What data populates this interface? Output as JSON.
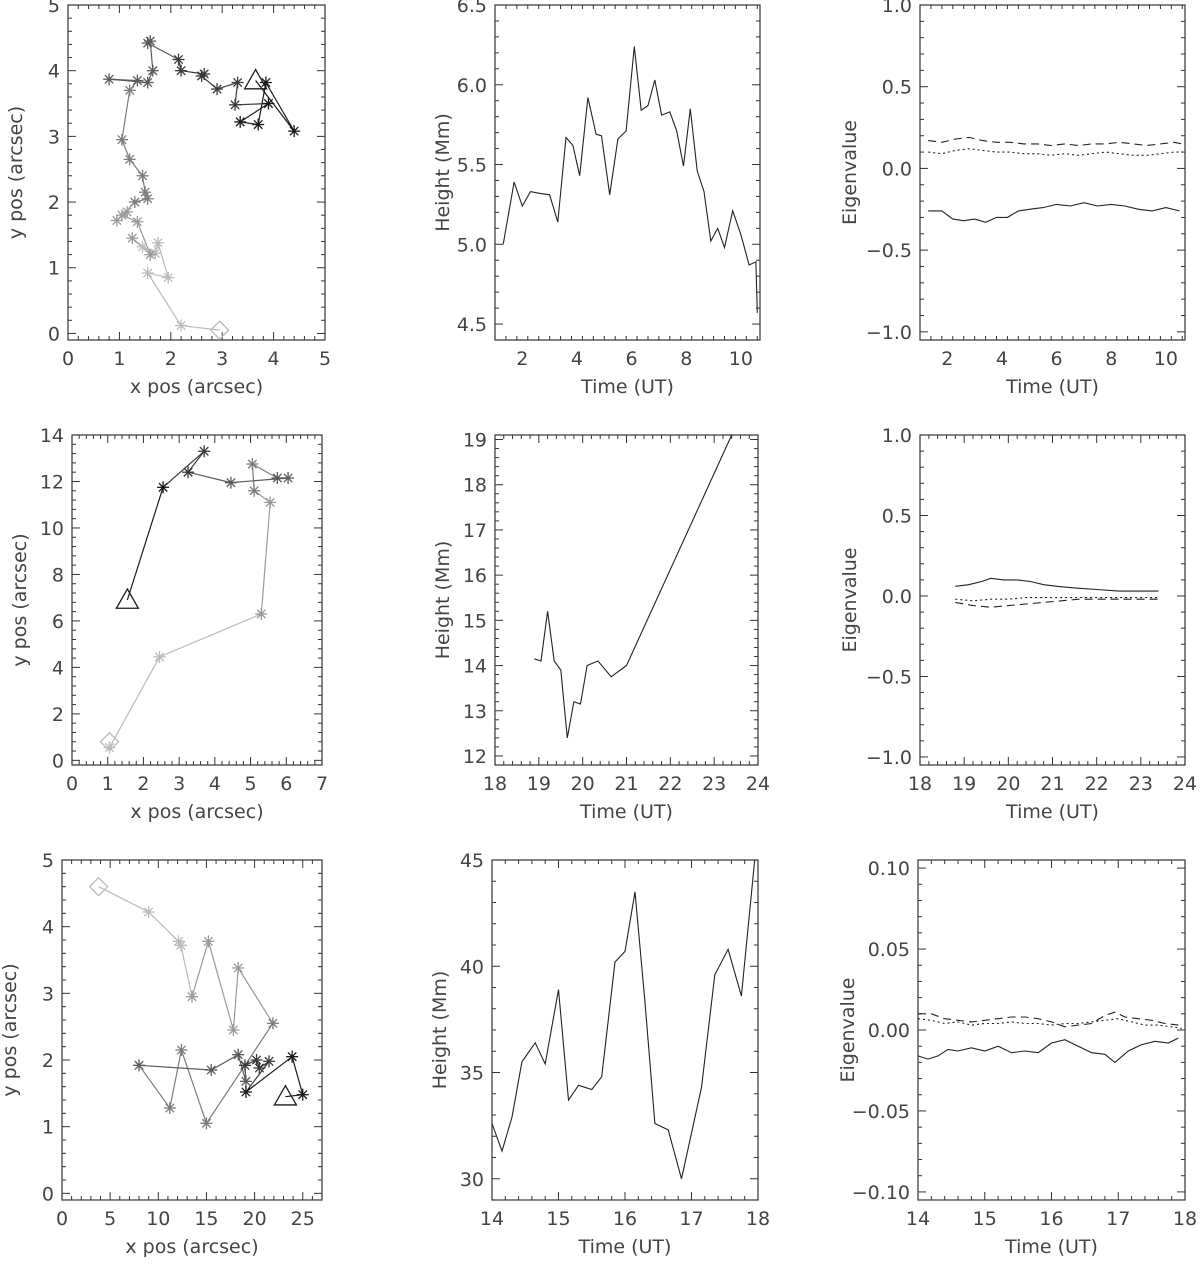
{
  "figure": {
    "description_free": true
  },
  "chart_data": [
    {
      "id": "r1-pos",
      "type": "scatter",
      "xlabel": "x pos (arcsec)",
      "ylabel": "y pos (arcsec)",
      "xlim": [
        0,
        5
      ],
      "ylim": [
        -0.1,
        5
      ],
      "xticks": [
        0,
        1,
        2,
        3,
        4,
        5
      ],
      "yticks": [
        0,
        1,
        2,
        3,
        4,
        5
      ],
      "start_marker": "diamond",
      "end_marker": "triangle",
      "start": [
        2.95,
        0.05
      ],
      "end": [
        3.65,
        3.85
      ],
      "points": [
        [
          2.95,
          0.05
        ],
        [
          2.2,
          0.12
        ],
        [
          1.55,
          0.92
        ],
        [
          1.95,
          0.85
        ],
        [
          1.75,
          1.38
        ],
        [
          1.7,
          1.22
        ],
        [
          1.45,
          1.32
        ],
        [
          1.25,
          1.45
        ],
        [
          1.6,
          1.2
        ],
        [
          1.35,
          1.7
        ],
        [
          1.05,
          1.8
        ],
        [
          1.15,
          1.85
        ],
        [
          0.95,
          1.72
        ],
        [
          1.3,
          2.0
        ],
        [
          1.55,
          2.05
        ],
        [
          1.5,
          2.15
        ],
        [
          1.45,
          2.4
        ],
        [
          1.2,
          2.65
        ],
        [
          1.05,
          2.95
        ],
        [
          1.2,
          3.7
        ],
        [
          1.35,
          3.85
        ],
        [
          0.8,
          3.87
        ],
        [
          1.55,
          3.82
        ],
        [
          1.65,
          4.0
        ],
        [
          1.6,
          4.45
        ],
        [
          1.55,
          4.42
        ],
        [
          2.15,
          4.17
        ],
        [
          2.2,
          4.0
        ],
        [
          2.65,
          3.95
        ],
        [
          2.6,
          3.92
        ],
        [
          2.9,
          3.72
        ],
        [
          3.3,
          3.82
        ],
        [
          3.25,
          3.48
        ],
        [
          3.9,
          3.5
        ],
        [
          3.35,
          3.22
        ],
        [
          3.7,
          3.18
        ],
        [
          3.85,
          3.82
        ],
        [
          4.4,
          3.08
        ],
        [
          3.65,
          3.85
        ]
      ]
    },
    {
      "id": "r1-height",
      "type": "line",
      "xlabel": "Time (UT)",
      "ylabel": "Height (Mm)",
      "xlim": [
        1,
        10.7
      ],
      "ylim": [
        4.4,
        6.5
      ],
      "xticks": [
        2,
        4,
        6,
        8,
        10
      ],
      "yticks": [
        4.5,
        5.0,
        5.5,
        6.0,
        6.5
      ],
      "ytick_labels": [
        "4.5",
        "5.0",
        "5.5",
        "6.0",
        "6.5"
      ],
      "x": [
        1.3,
        1.7,
        2.0,
        2.3,
        2.6,
        3.0,
        3.3,
        3.6,
        3.85,
        4.1,
        4.4,
        4.7,
        4.9,
        5.2,
        5.5,
        5.8,
        6.1,
        6.35,
        6.6,
        6.85,
        7.1,
        7.4,
        7.65,
        7.9,
        8.15,
        8.4,
        8.65,
        8.9,
        9.15,
        9.4,
        9.7,
        10.0,
        10.3,
        10.55,
        10.6
      ],
      "y": [
        5.0,
        5.39,
        5.24,
        5.33,
        5.32,
        5.31,
        5.14,
        5.67,
        5.62,
        5.43,
        5.92,
        5.69,
        5.68,
        5.31,
        5.66,
        5.71,
        6.24,
        5.84,
        5.87,
        6.03,
        5.81,
        5.83,
        5.71,
        5.49,
        5.85,
        5.46,
        5.33,
        5.02,
        5.1,
        4.98,
        5.21,
        5.06,
        4.87,
        4.89,
        4.57
      ]
    },
    {
      "id": "r1-eigen",
      "type": "line",
      "xlabel": "Time (UT)",
      "ylabel": "Eigenvalue",
      "xlim": [
        1,
        10.7
      ],
      "ylim": [
        -1.05,
        1.0
      ],
      "xticks": [
        2,
        4,
        6,
        8,
        10
      ],
      "yticks": [
        -1.0,
        -0.5,
        0.0,
        0.5,
        1.0
      ],
      "ytick_labels": [
        "−1.0",
        "−0.5",
        "0.0",
        "0.5",
        "1.0"
      ],
      "series": [
        {
          "name": "solid",
          "dash": "none",
          "x": [
            1.3,
            1.8,
            2.2,
            2.6,
            3.0,
            3.4,
            3.8,
            4.2,
            4.6,
            5.0,
            5.5,
            6.0,
            6.5,
            7.0,
            7.5,
            8.0,
            8.5,
            9.0,
            9.5,
            10.0,
            10.5
          ],
          "y": [
            -0.26,
            -0.26,
            -0.31,
            -0.32,
            -0.31,
            -0.33,
            -0.3,
            -0.3,
            -0.26,
            -0.25,
            -0.24,
            -0.22,
            -0.23,
            -0.21,
            -0.23,
            -0.22,
            -0.23,
            -0.25,
            -0.26,
            -0.24,
            -0.26
          ]
        },
        {
          "name": "dashed",
          "dash": "8,5",
          "x": [
            1.3,
            1.8,
            2.3,
            2.8,
            3.3,
            3.8,
            4.3,
            4.8,
            5.3,
            5.8,
            6.3,
            6.8,
            7.3,
            7.8,
            8.3,
            8.8,
            9.3,
            9.8,
            10.3,
            10.6
          ],
          "y": [
            0.17,
            0.16,
            0.18,
            0.19,
            0.17,
            0.16,
            0.16,
            0.15,
            0.15,
            0.14,
            0.15,
            0.14,
            0.15,
            0.15,
            0.16,
            0.15,
            0.14,
            0.15,
            0.16,
            0.15
          ]
        },
        {
          "name": "dotted",
          "dash": "2,3",
          "x": [
            1.3,
            1.8,
            2.3,
            2.8,
            3.3,
            3.8,
            4.3,
            4.8,
            5.3,
            5.8,
            6.3,
            6.8,
            7.3,
            7.8,
            8.3,
            8.8,
            9.3,
            9.8,
            10.3,
            10.6
          ],
          "y": [
            0.1,
            0.09,
            0.11,
            0.12,
            0.11,
            0.1,
            0.1,
            0.09,
            0.09,
            0.08,
            0.09,
            0.08,
            0.09,
            0.1,
            0.09,
            0.08,
            0.08,
            0.09,
            0.1,
            0.1
          ]
        }
      ]
    },
    {
      "id": "r2-pos",
      "type": "scatter",
      "xlabel": "x pos (arcsec)",
      "ylabel": "y pos (arcsec)",
      "xlim": [
        0,
        7
      ],
      "ylim": [
        -0.2,
        14
      ],
      "xticks": [
        0,
        1,
        2,
        3,
        4,
        5,
        6,
        7
      ],
      "yticks": [
        0,
        2,
        4,
        6,
        8,
        10,
        12,
        14
      ],
      "start_marker": "diamond",
      "end_marker": "triangle",
      "start": [
        1.05,
        0.8
      ],
      "end": [
        1.55,
        6.9
      ],
      "points": [
        [
          1.05,
          0.8
        ],
        [
          1.05,
          0.55
        ],
        [
          2.45,
          4.45
        ],
        [
          5.3,
          6.3
        ],
        [
          5.55,
          11.1
        ],
        [
          5.1,
          11.6
        ],
        [
          5.05,
          12.75
        ],
        [
          5.75,
          12.15
        ],
        [
          6.05,
          12.15
        ],
        [
          4.45,
          11.95
        ],
        [
          3.25,
          12.4
        ],
        [
          3.7,
          13.3
        ],
        [
          2.55,
          11.75
        ],
        [
          1.55,
          6.9
        ]
      ]
    },
    {
      "id": "r2-height",
      "type": "line",
      "xlabel": "Time (UT)",
      "ylabel": "Height (Mm)",
      "xlim": [
        18,
        24
      ],
      "ylim": [
        11.8,
        19.1
      ],
      "xticks": [
        18,
        19,
        20,
        21,
        22,
        23,
        24
      ],
      "yticks": [
        12,
        13,
        14,
        15,
        16,
        17,
        18,
        19
      ],
      "ytick_labels": [
        "12",
        "13",
        "14",
        "15",
        "16",
        "17",
        "18",
        "19"
      ],
      "x": [
        18.9,
        19.05,
        19.2,
        19.35,
        19.5,
        19.65,
        19.8,
        19.95,
        20.1,
        20.35,
        20.65,
        21.0,
        23.4
      ],
      "y": [
        14.15,
        14.1,
        15.2,
        14.1,
        13.9,
        12.4,
        13.2,
        13.15,
        14.0,
        14.1,
        13.75,
        14.0,
        19.1
      ]
    },
    {
      "id": "r2-eigen",
      "type": "line",
      "xlabel": "Time (UT)",
      "ylabel": "Eigenvalue",
      "xlim": [
        18,
        24
      ],
      "ylim": [
        -1.05,
        1.0
      ],
      "xticks": [
        18,
        19,
        20,
        21,
        22,
        23,
        24
      ],
      "yticks": [
        -1.0,
        -0.5,
        0.0,
        0.5,
        1.0
      ],
      "ytick_labels": [
        "−1.0",
        "−0.5",
        "0.0",
        "0.5",
        "1.0"
      ],
      "series": [
        {
          "name": "solid",
          "dash": "none",
          "x": [
            18.8,
            19.1,
            19.4,
            19.6,
            19.9,
            20.2,
            20.5,
            20.8,
            21.1,
            21.5,
            22.0,
            22.5,
            23.0,
            23.4
          ],
          "y": [
            0.06,
            0.07,
            0.09,
            0.11,
            0.1,
            0.1,
            0.09,
            0.07,
            0.06,
            0.05,
            0.04,
            0.03,
            0.03,
            0.03
          ]
        },
        {
          "name": "dashed",
          "dash": "8,5",
          "x": [
            18.8,
            19.2,
            19.6,
            20.0,
            20.4,
            20.8,
            21.2,
            21.6,
            22.0,
            22.5,
            23.0,
            23.4
          ],
          "y": [
            -0.04,
            -0.06,
            -0.07,
            -0.06,
            -0.05,
            -0.04,
            -0.03,
            -0.02,
            -0.02,
            -0.02,
            -0.02,
            -0.02
          ]
        },
        {
          "name": "dotted",
          "dash": "2,3",
          "x": [
            18.8,
            19.2,
            19.6,
            20.0,
            20.4,
            20.8,
            21.2,
            21.6,
            22.0,
            22.5,
            23.0,
            23.4
          ],
          "y": [
            -0.02,
            -0.03,
            -0.02,
            -0.02,
            -0.01,
            -0.01,
            -0.01,
            -0.01,
            -0.01,
            -0.01,
            -0.01,
            -0.01
          ]
        }
      ]
    },
    {
      "id": "r3-pos",
      "type": "scatter",
      "xlabel": "x pos (arcsec)",
      "ylabel": "y pos (arcsec)",
      "xlim": [
        0,
        27
      ],
      "ylim": [
        -0.1,
        5
      ],
      "xticks": [
        0,
        5,
        10,
        15,
        20,
        25
      ],
      "yticks": [
        0,
        1,
        2,
        3,
        4,
        5
      ],
      "start_marker": "diamond",
      "end_marker": "triangle",
      "start": [
        3.8,
        4.6
      ],
      "end": [
        23.2,
        1.45
      ],
      "points": [
        [
          3.8,
          4.6
        ],
        [
          9.0,
          4.22
        ],
        [
          12.1,
          3.78
        ],
        [
          12.35,
          3.72
        ],
        [
          13.5,
          2.95
        ],
        [
          15.2,
          3.78
        ],
        [
          17.8,
          2.45
        ],
        [
          18.3,
          3.38
        ],
        [
          21.9,
          2.55
        ],
        [
          15.0,
          1.05
        ],
        [
          12.4,
          2.15
        ],
        [
          11.2,
          1.28
        ],
        [
          8.0,
          1.92
        ],
        [
          15.5,
          1.85
        ],
        [
          18.3,
          2.08
        ],
        [
          19.1,
          1.68
        ],
        [
          19.0,
          1.92
        ],
        [
          20.2,
          2.0
        ],
        [
          20.5,
          1.88
        ],
        [
          21.5,
          1.98
        ],
        [
          19.1,
          1.52
        ],
        [
          23.9,
          2.05
        ],
        [
          25.0,
          1.48
        ],
        [
          23.2,
          1.45
        ]
      ]
    },
    {
      "id": "r3-height",
      "type": "line",
      "xlabel": "Time (UT)",
      "ylabel": "Height (Mm)",
      "xlim": [
        14,
        18
      ],
      "ylim": [
        29,
        45
      ],
      "xticks": [
        14,
        15,
        16,
        17,
        18
      ],
      "yticks": [
        30,
        35,
        40,
        45
      ],
      "ytick_labels": [
        "30",
        "35",
        "40",
        "45"
      ],
      "x": [
        14.0,
        14.15,
        14.3,
        14.45,
        14.65,
        14.8,
        15.0,
        15.15,
        15.3,
        15.5,
        15.65,
        15.85,
        16.0,
        16.15,
        16.3,
        16.45,
        16.65,
        16.85,
        17.15,
        17.35,
        17.55,
        17.75,
        17.95
      ],
      "y": [
        32.6,
        31.3,
        32.9,
        35.5,
        36.4,
        35.4,
        38.9,
        33.7,
        34.4,
        34.2,
        34.8,
        40.2,
        40.7,
        43.5,
        38.3,
        32.6,
        32.3,
        30.0,
        34.3,
        39.6,
        40.8,
        38.6,
        45.0
      ]
    },
    {
      "id": "r3-eigen",
      "type": "line",
      "xlabel": "Time (UT)",
      "ylabel": "Eigenvalue",
      "xlim": [
        14,
        18
      ],
      "ylim": [
        -0.105,
        0.105
      ],
      "xticks": [
        14,
        15,
        16,
        17,
        18
      ],
      "yticks": [
        -0.1,
        -0.05,
        0.0,
        0.05,
        0.1
      ],
      "ytick_labels": [
        "−0.10",
        "−0.05",
        "0.00",
        "0.05",
        "0.10"
      ],
      "series": [
        {
          "name": "solid",
          "dash": "none",
          "x": [
            14.0,
            14.15,
            14.3,
            14.45,
            14.6,
            14.8,
            15.0,
            15.2,
            15.4,
            15.6,
            15.8,
            16.0,
            16.2,
            16.4,
            16.6,
            16.8,
            16.95,
            17.15,
            17.35,
            17.55,
            17.75,
            17.9
          ],
          "y": [
            -0.016,
            -0.018,
            -0.016,
            -0.012,
            -0.013,
            -0.011,
            -0.013,
            -0.01,
            -0.014,
            -0.013,
            -0.014,
            -0.008,
            -0.006,
            -0.01,
            -0.014,
            -0.015,
            -0.02,
            -0.013,
            -0.009,
            -0.007,
            -0.008,
            -0.005
          ]
        },
        {
          "name": "dashed",
          "dash": "8,5",
          "x": [
            14.0,
            14.2,
            14.4,
            14.6,
            14.8,
            15.0,
            15.2,
            15.4,
            15.6,
            15.8,
            16.0,
            16.2,
            16.4,
            16.6,
            16.8,
            16.95,
            17.1,
            17.3,
            17.5,
            17.7,
            17.9
          ],
          "y": [
            0.01,
            0.01,
            0.007,
            0.006,
            0.005,
            0.006,
            0.007,
            0.008,
            0.008,
            0.007,
            0.005,
            0.002,
            0.003,
            0.004,
            0.009,
            0.011,
            0.008,
            0.007,
            0.006,
            0.004,
            0.003
          ]
        },
        {
          "name": "dotted",
          "dash": "2,3",
          "x": [
            14.0,
            14.2,
            14.4,
            14.6,
            14.8,
            15.0,
            15.2,
            15.4,
            15.6,
            15.8,
            16.0,
            16.2,
            16.4,
            16.6,
            16.8,
            17.0,
            17.2,
            17.4,
            17.6,
            17.8,
            17.95
          ],
          "y": [
            0.007,
            0.006,
            0.004,
            0.005,
            0.003,
            0.004,
            0.004,
            0.005,
            0.004,
            0.004,
            0.003,
            0.004,
            0.004,
            0.005,
            0.006,
            0.007,
            0.005,
            0.003,
            0.003,
            0.002,
            0.001
          ]
        }
      ]
    }
  ]
}
